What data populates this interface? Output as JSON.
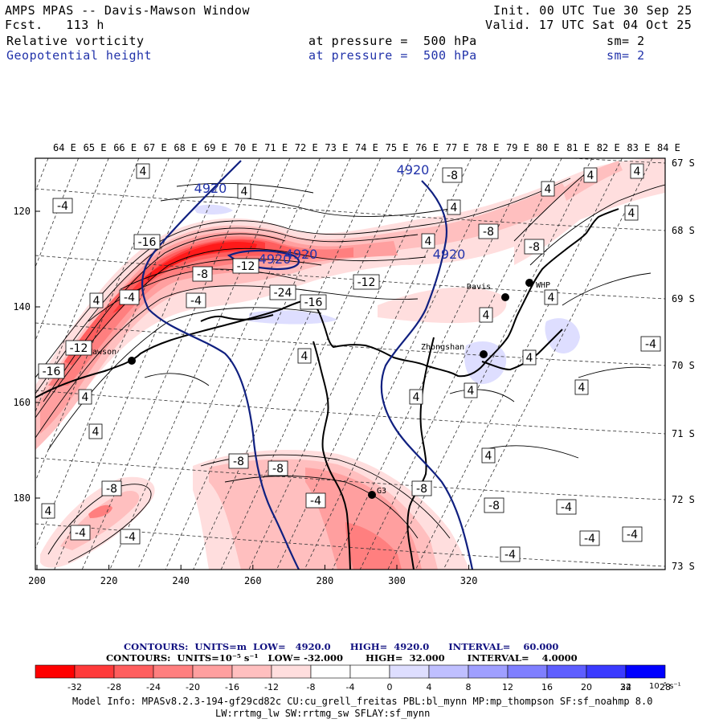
{
  "header": {
    "title": "AMPS MPAS -- Davis-Mawson Window",
    "fcst_label": "Fcst.",
    "fcst_value": "113 h",
    "init_label": "Init.",
    "init_value": "00 UTC Tue 30 Sep 25",
    "valid_label": "Valid.",
    "valid_value": "17 UTC Sat 04 Oct 25",
    "field1_name": "Relative vorticity",
    "field1_level": "at pressure =  500 hPa",
    "field1_sm": "sm= 2",
    "field2_name": "Geopotential height",
    "field2_level": "at pressure =  500 hPa",
    "field2_sm": "sm= 2"
  },
  "axes": {
    "lon_top": [
      "64 E",
      "65 E",
      "66 E",
      "67 E",
      "68 E",
      "69 E",
      "70 E",
      "71 E",
      "72 E",
      "73 E",
      "74 E",
      "75 E",
      "76 E",
      "77 E",
      "78 E",
      "79 E",
      "80 E",
      "81 E",
      "82 E",
      "83 E",
      "84 E"
    ],
    "lat_right": [
      "67 S",
      "68 S",
      "69 S",
      "70 S",
      "71 S",
      "72 S",
      "73 S"
    ],
    "x_ticks": [
      "200",
      "220",
      "240",
      "260",
      "280",
      "300",
      "320"
    ],
    "y_ticks": [
      "120",
      "140",
      "160",
      "180"
    ]
  },
  "stations": [
    {
      "name": "Mawson"
    },
    {
      "name": "Davis"
    },
    {
      "name": "WHP"
    },
    {
      "name": "Zhongshan"
    },
    {
      "name": "G3"
    }
  ],
  "height_labels": [
    "4920",
    "4920",
    "4920",
    "4920",
    "4920"
  ],
  "vort_labels": {
    "neg": [
      "-4",
      "-4",
      "-4",
      "-4",
      "-4",
      "-4",
      "-4",
      "-4",
      "-4",
      "-4",
      "-4",
      "-8",
      "-8",
      "-8",
      "-8",
      "-8",
      "-8",
      "-8",
      "-8",
      "-8",
      "-12",
      "-12",
      "-12",
      "-16",
      "-16",
      "-16",
      "-24"
    ],
    "pos": [
      "4",
      "4",
      "4",
      "4",
      "4",
      "4",
      "4",
      "4",
      "4",
      "4",
      "4",
      "4",
      "4",
      "4",
      "4",
      "4",
      "4",
      "4",
      "4",
      "4"
    ]
  },
  "contour_info": {
    "line1": "CONTOURS:  UNITS=m  LOW=   4920.0      HIGH=  4920.0      INTERVAL=    60.000",
    "line2": "CONTOURS:  UNITS=10⁻⁵ s⁻¹   LOW= -32.000       HIGH=  32.000       INTERVAL=    4.0000"
  },
  "colorbar": {
    "colors": [
      "#ff0000",
      "#ff3a3a",
      "#ff5e5e",
      "#ff7f7f",
      "#ff9f9f",
      "#ffbfbf",
      "#ffdede",
      "#ffffff",
      "#ffffff",
      "#dedeff",
      "#bfbfff",
      "#9f9fff",
      "#7f7fff",
      "#5e5eff",
      "#3a3aff",
      "#0000ff"
    ],
    "labels": [
      "-32",
      "-28",
      "-24",
      "-20",
      "-16",
      "-12",
      "-8",
      "-4",
      "0",
      "4",
      "8",
      "12",
      "16",
      "20",
      "24",
      "28",
      "32"
    ],
    "units": "10⁻⁵ s⁻¹"
  },
  "model_info": {
    "line1": "Model Info: MPASv8.2.3-194-gf29cd82c CU:cu_grell_freitas PBL:bl_mynn MP:mp_thompson SF:sf_noahmp 8.0",
    "line2": "LW:rrtmg_lw SW:rrtmg_sw SFLAY:sf_mynn"
  }
}
